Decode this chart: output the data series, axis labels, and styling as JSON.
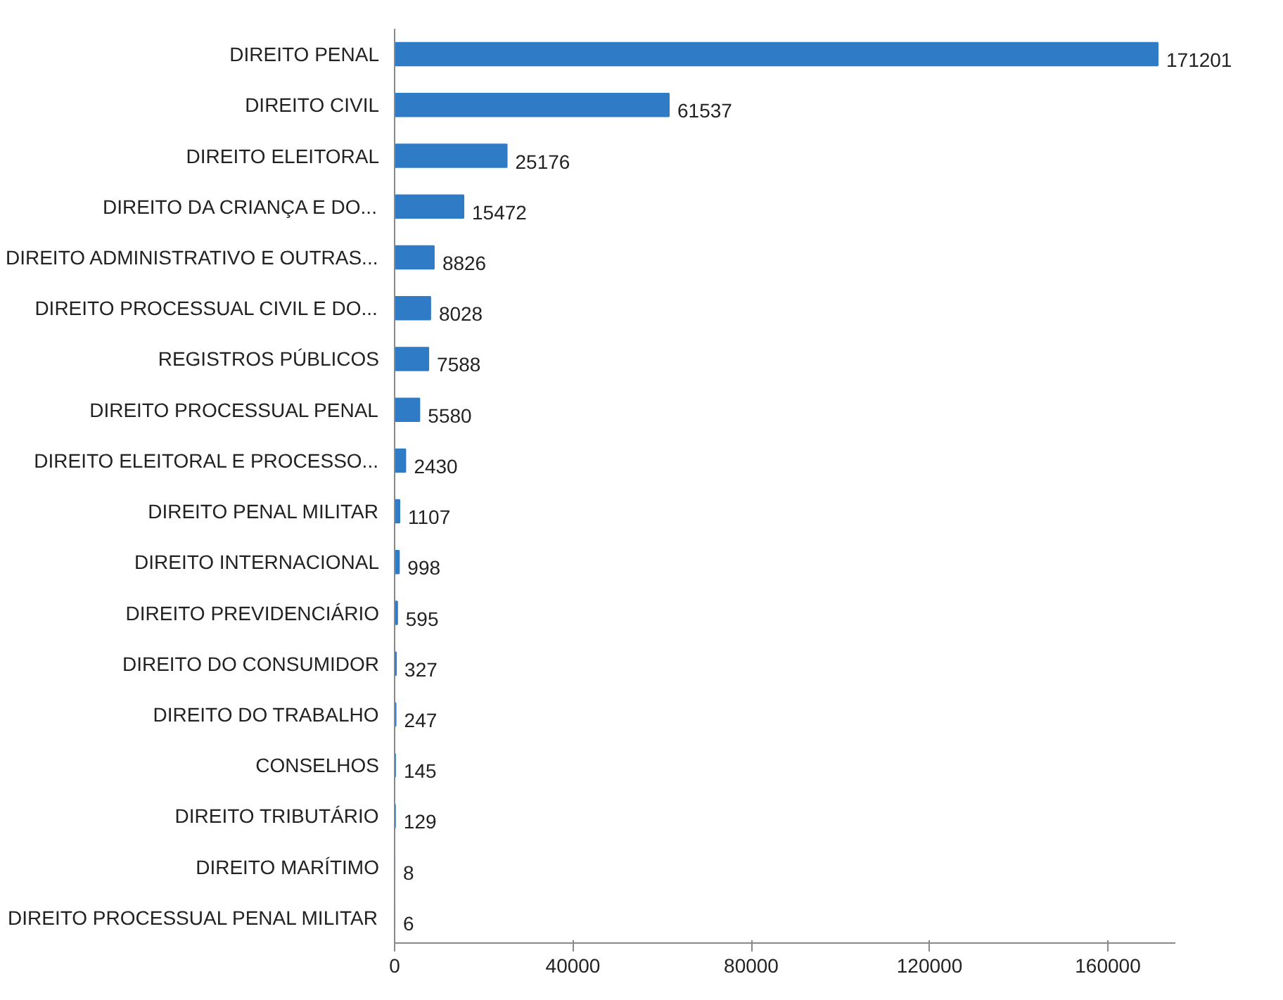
{
  "chart_data": {
    "type": "bar",
    "orientation": "horizontal",
    "categories": [
      "DIREITO PENAL",
      "DIREITO CIVIL",
      "DIREITO ELEITORAL",
      "DIREITO DA CRIANÇA E DO...",
      "DIREITO ADMINISTRATIVO E OUTRAS...",
      "DIREITO PROCESSUAL CIVIL E DO...",
      "REGISTROS PÚBLICOS",
      "DIREITO PROCESSUAL PENAL",
      "DIREITO ELEITORAL E PROCESSO...",
      "DIREITO PENAL MILITAR",
      "DIREITO INTERNACIONAL",
      "DIREITO PREVIDENCIÁRIO",
      "DIREITO DO CONSUMIDOR",
      "DIREITO DO TRABALHO",
      "CONSELHOS",
      "DIREITO TRIBUTÁRIO",
      "DIREITO MARÍTIMO",
      "DIREITO PROCESSUAL PENAL MILITAR"
    ],
    "values": [
      171201,
      61537,
      25176,
      15472,
      8826,
      8028,
      7588,
      5580,
      2430,
      1107,
      998,
      595,
      327,
      247,
      145,
      129,
      8,
      6
    ],
    "color": "#2f7bc6",
    "xlim": [
      0,
      175000
    ],
    "xticks": [
      0,
      40000,
      80000,
      120000,
      160000
    ],
    "data_labels": true,
    "grid": false
  }
}
